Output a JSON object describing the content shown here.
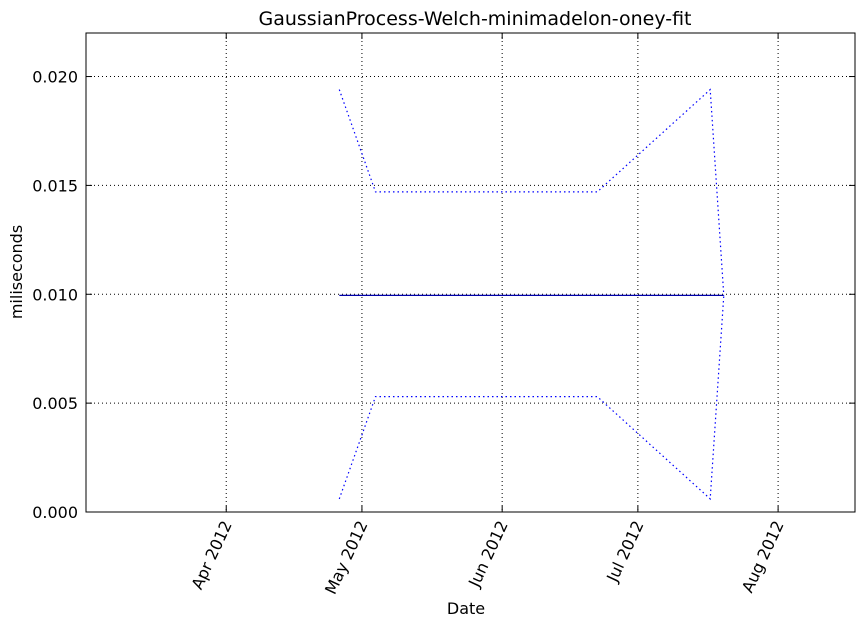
{
  "chart_data": {
    "type": "line",
    "title": "GaussianProcess-Welch-minimadelon-oney-fit",
    "xlabel": "Date",
    "ylabel": "miliseconds",
    "x_axis": {
      "type": "date",
      "range": [
        "2012-03-01",
        "2012-08-18"
      ],
      "ticks": [
        {
          "date": "2012-04-01",
          "label": "Apr 2012"
        },
        {
          "date": "2012-05-01",
          "label": "May 2012"
        },
        {
          "date": "2012-06-01",
          "label": "Jun 2012"
        },
        {
          "date": "2012-07-01",
          "label": "Jul 2012"
        },
        {
          "date": "2012-08-01",
          "label": "Aug 2012"
        }
      ]
    },
    "y_axis": {
      "range": [
        0.0,
        0.022
      ],
      "ticks": [
        {
          "value": 0.0,
          "label": "0.000"
        },
        {
          "value": 0.005,
          "label": "0.005"
        },
        {
          "value": 0.01,
          "label": "0.010"
        },
        {
          "value": 0.015,
          "label": "0.015"
        },
        {
          "value": 0.02,
          "label": "0.020"
        }
      ]
    },
    "grid": true,
    "series": [
      {
        "role": "mean",
        "style": "solid",
        "color": "#0000aa",
        "points": [
          [
            "2012-04-26",
            0.00995
          ],
          [
            "2012-07-20",
            0.00995
          ]
        ]
      },
      {
        "role": "upper-bound",
        "style": "dotted",
        "color": "#0000ff",
        "points": [
          [
            "2012-04-26",
            0.0194
          ],
          [
            "2012-05-04",
            0.0147
          ],
          [
            "2012-06-22",
            0.0147
          ],
          [
            "2012-07-17",
            0.0194
          ],
          [
            "2012-07-20",
            0.00995
          ]
        ]
      },
      {
        "role": "lower-bound",
        "style": "dotted",
        "color": "#0000ff",
        "points": [
          [
            "2012-04-26",
            0.0006
          ],
          [
            "2012-05-04",
            0.0053
          ],
          [
            "2012-06-22",
            0.0053
          ],
          [
            "2012-07-17",
            0.0006
          ],
          [
            "2012-07-20",
            0.00995
          ]
        ]
      }
    ]
  }
}
